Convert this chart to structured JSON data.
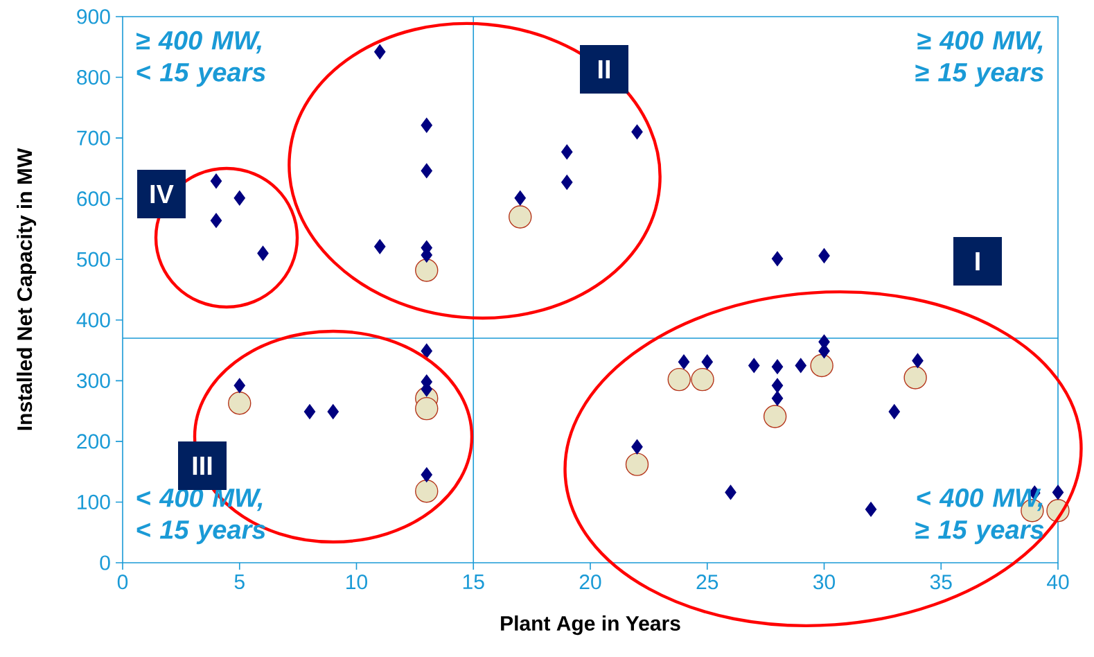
{
  "chart_data": {
    "type": "scatter",
    "xlabel": "Plant Age in Years",
    "ylabel": "Installed Net Capacity in MW",
    "xlim": [
      0,
      40
    ],
    "ylim": [
      0,
      900
    ],
    "xticks": [
      0,
      5,
      10,
      15,
      20,
      25,
      30,
      35,
      40
    ],
    "yticks": [
      0,
      100,
      200,
      300,
      400,
      500,
      600,
      700,
      800,
      900
    ],
    "series": [
      {
        "color": "#000080",
        "marker": "diamond",
        "x": [
          4,
          4,
          5,
          6,
          11,
          11,
          13,
          13,
          13,
          13,
          17,
          19,
          19,
          22,
          28,
          30,
          5,
          8,
          9,
          13,
          13,
          13,
          13,
          22,
          24,
          25,
          26,
          27,
          28,
          28,
          28,
          29,
          30,
          30,
          32,
          33,
          34,
          39,
          40
        ],
        "values": [
          629,
          564,
          601,
          510,
          842,
          521,
          721,
          646,
          519,
          507,
          601,
          677,
          627,
          710,
          501,
          506,
          292,
          249,
          249,
          349,
          298,
          286,
          145,
          191,
          331,
          331,
          116,
          325,
          323,
          292,
          271,
          325,
          364,
          349,
          88,
          249,
          333,
          115,
          116
        ]
      },
      {
        "color": "#e8e4c4",
        "marker": "circle",
        "x": [
          17,
          13,
          5,
          13,
          13,
          13,
          22,
          23.8,
          24.8,
          27.9,
          29.9,
          33.9,
          38.9,
          40
        ],
        "values": [
          570,
          482,
          263,
          271,
          254,
          118,
          162,
          302,
          302,
          241,
          325,
          305,
          86,
          86
        ]
      }
    ],
    "ref_lines": [
      {
        "axis": "x",
        "value": 15,
        "color": "#1a9ad6",
        "line_style": "solid"
      },
      {
        "axis": "y",
        "value": 370,
        "color": "#1a9ad6",
        "line_style": "solid"
      }
    ],
    "annotations": [
      "≥ 400 MW, < 15 years",
      "≥ 400 MW, ≥ 15 years",
      "< 400 MW, < 15 years",
      "< 400 MW, ≥ 15 years",
      "I",
      "II",
      "III",
      "IV"
    ]
  }
}
